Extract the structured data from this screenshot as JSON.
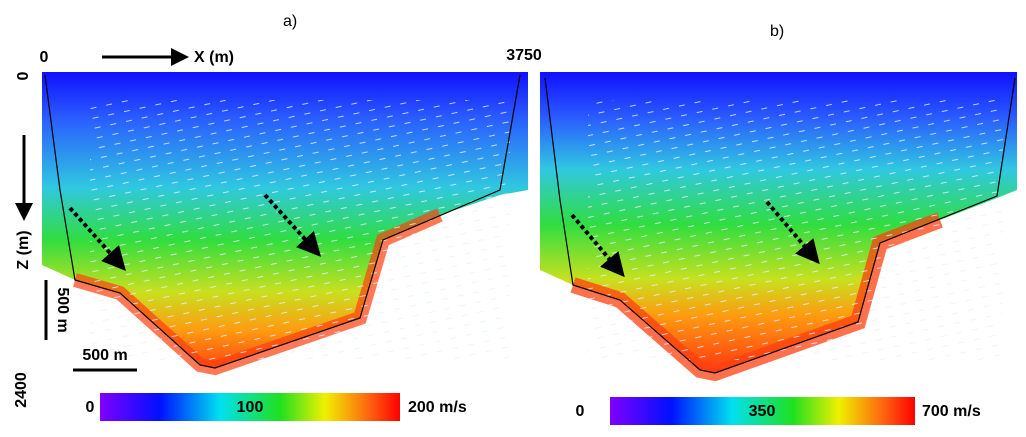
{
  "panels": [
    {
      "label": "a)",
      "x_start": "0",
      "x_end": "3750",
      "x_axis": "X (m)",
      "z_start": "0",
      "z_end": "2400",
      "z_axis": "Z (m)",
      "scale_vertical": "500 m",
      "scale_horizontal": "500 m",
      "colorbar": [
        "0",
        "100",
        "200 m/s"
      ]
    },
    {
      "label": "b)",
      "colorbar": [
        "0",
        "350",
        "700 m/s"
      ]
    }
  ]
}
